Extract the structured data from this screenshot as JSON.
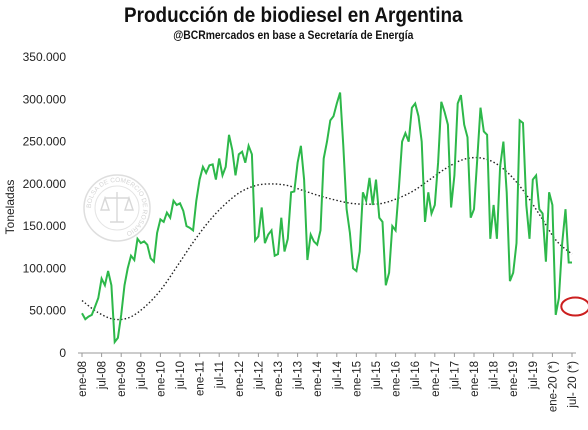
{
  "header": {
    "title": "Producción de biodiesel en Argentina",
    "subtitle": "@BCRmercados en base a Secretaría de Energía"
  },
  "watermark": {
    "text": "BOLSA DE COMERCIO DE ROSARIO"
  },
  "colors": {
    "series": "#2db84a",
    "trend": "#222222",
    "highlight": "#cc1f1f",
    "axis": "#999999"
  },
  "chart_data": {
    "type": "line",
    "title": "Producción de biodiesel en Argentina",
    "subtitle": "@BCRmercados en base a Secretaría de Energía",
    "ylabel": "Toneladas",
    "xlabel": "",
    "ylim": [
      0,
      350000
    ],
    "yticks": [
      0,
      50000,
      100000,
      150000,
      200000,
      250000,
      300000,
      350000
    ],
    "ytick_labels": [
      "0",
      "50.000",
      "100.000",
      "150.000",
      "200.000",
      "250.000",
      "300.000",
      "350.000"
    ],
    "x_start": "ene-08",
    "x_tick_labels": [
      "ene-08",
      "jul-08",
      "ene-09",
      "jul-09",
      "ene-10",
      "jul-10",
      "ene-11",
      "jul-11",
      "ene-12",
      "jul-12",
      "ene-13",
      "jul-13",
      "ene-14",
      "jul-14",
      "ene-15",
      "jul-15",
      "ene-16",
      "jul-16",
      "ene-17",
      "jul-17",
      "ene-18",
      "jul-18",
      "ene-19",
      "jul-19",
      "ene-20 (*)",
      "jul- 20 (*)"
    ],
    "grid": false,
    "legend": "none",
    "series": [
      {
        "values": [
          47000,
          40000,
          43000,
          45000,
          55000,
          65000,
          88000,
          80000,
          97000,
          80000,
          13000,
          18000,
          45000,
          80000,
          100000,
          115000,
          110000,
          135000,
          130000,
          132000,
          128000,
          112000,
          108000,
          142000,
          158000,
          155000,
          166000,
          160000,
          180000,
          175000,
          177000,
          168000,
          150000,
          148000,
          145000,
          180000,
          205000,
          220000,
          213000,
          222000,
          223000,
          205000,
          230000,
          210000,
          220000,
          258000,
          240000,
          210000,
          235000,
          238000,
          225000,
          245000,
          235000,
          133000,
          138000,
          172000,
          130000,
          140000,
          145000,
          115000,
          117000,
          160000,
          120000,
          135000,
          190000,
          191000,
          225000,
          245000,
          205000,
          110000,
          140000,
          132000,
          128000,
          145000,
          230000,
          250000,
          275000,
          280000,
          295000,
          308000,
          245000,
          170000,
          142000,
          100000,
          97000,
          120000,
          190000,
          180000,
          207000,
          175000,
          205000,
          160000,
          155000,
          80000,
          95000,
          150000,
          145000,
          195000,
          250000,
          260000,
          250000,
          290000,
          295000,
          280000,
          250000,
          155000,
          190000,
          165000,
          175000,
          225000,
          297000,
          285000,
          270000,
          172000,
          210000,
          295000,
          305000,
          270000,
          255000,
          160000,
          170000,
          230000,
          290000,
          262000,
          258000,
          135000,
          175000,
          135000,
          220000,
          250000,
          190000,
          85000,
          95000,
          130000,
          275000,
          272000,
          175000,
          135000,
          205000,
          210000,
          170000,
          165000,
          108000,
          190000,
          175000,
          45000,
          65000,
          130000,
          170000,
          107000,
          107000
        ]
      }
    ],
    "trend": {
      "type": "polynomial",
      "values": [
        62000,
        48000,
        40000,
        42000,
        55000,
        75000,
        102000,
        130000,
        155000,
        175000,
        190000,
        198000,
        200000,
        198000,
        192000,
        186000,
        181000,
        177000,
        176000,
        177000,
        183000,
        192000,
        205000,
        218000,
        228000,
        231000,
        226000,
        212000,
        190000,
        162000,
        133000,
        117000
      ]
    },
    "annotations": [
      {
        "type": "ellipse",
        "at": "ago-20",
        "value": 55000
      }
    ]
  }
}
